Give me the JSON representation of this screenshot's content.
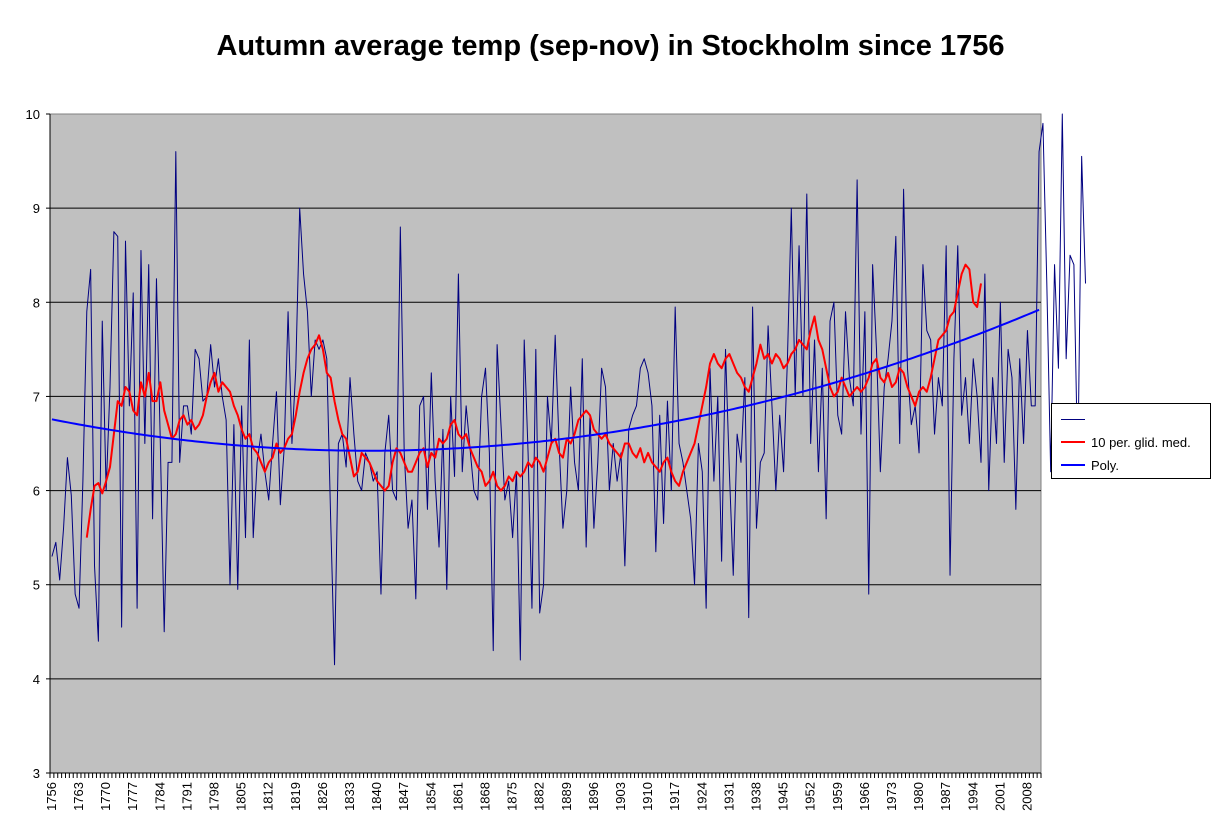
{
  "chart_data": {
    "type": "line",
    "title": "Autumn average temp (sep-nov) in Stockholm since 1756",
    "xlabel": "",
    "ylabel": "",
    "ylim": [
      3,
      10
    ],
    "yticks": [
      3,
      4,
      5,
      6,
      7,
      8,
      9,
      10
    ],
    "x_start": 1756,
    "x_end": 2011,
    "xtick_labels": [
      "1756",
      "1763",
      "1770",
      "1777",
      "1784",
      "1791",
      "1798",
      "1805",
      "1812",
      "1819",
      "1826",
      "1833",
      "1840",
      "1847",
      "1854",
      "1861",
      "1868",
      "1875",
      "1882",
      "1889",
      "1896",
      "1903",
      "1910",
      "1917",
      "1924",
      "1931",
      "1938",
      "1945",
      "1952",
      "1959",
      "1966",
      "1973",
      "1980",
      "1987",
      "1994",
      "2001",
      "2008"
    ],
    "grid": "horizontal",
    "plot_background": "#c0c0c0",
    "legend_position": "right",
    "series": [
      {
        "name": "",
        "color": "#000080",
        "stroke_width": 1,
        "values": [
          5.3,
          5.45,
          5.05,
          5.6,
          6.35,
          5.95,
          4.9,
          4.75,
          6.1,
          7.9,
          8.35,
          5.2,
          4.4,
          7.8,
          6.0,
          7.1,
          8.75,
          8.7,
          4.55,
          8.65,
          6.9,
          8.1,
          4.75,
          8.55,
          6.5,
          8.4,
          5.7,
          8.25,
          6.5,
          4.5,
          6.3,
          6.3,
          9.6,
          6.3,
          6.9,
          6.9,
          6.6,
          7.5,
          7.4,
          6.95,
          7.0,
          7.55,
          7.1,
          7.4,
          7.0,
          6.75,
          5.0,
          6.7,
          4.95,
          6.9,
          5.5,
          7.6,
          5.5,
          6.3,
          6.6,
          6.2,
          5.9,
          6.5,
          7.05,
          5.85,
          6.45,
          7.9,
          6.5,
          7.3,
          9.0,
          8.3,
          7.9,
          7.0,
          7.6,
          7.5,
          7.6,
          7.4,
          5.7,
          4.15,
          6.5,
          6.6,
          6.25,
          7.2,
          6.6,
          6.1,
          6.0,
          6.4,
          6.3,
          6.1,
          6.2,
          4.9,
          6.4,
          6.8,
          6.0,
          5.9,
          8.8,
          6.4,
          5.6,
          5.9,
          4.85,
          6.9,
          7.0,
          5.8,
          7.25,
          6.1,
          5.4,
          6.65,
          4.95,
          7.0,
          6.15,
          8.3,
          6.2,
          6.9,
          6.45,
          6.0,
          5.9,
          7.0,
          7.3,
          6.4,
          4.3,
          7.55,
          6.7,
          5.9,
          6.1,
          5.5,
          6.2,
          4.2,
          7.6,
          6.4,
          4.75,
          7.5,
          4.7,
          5.0,
          7.0,
          6.5,
          7.65,
          6.5,
          5.6,
          6.0,
          7.1,
          6.3,
          6.0,
          7.4,
          5.4,
          6.8,
          5.6,
          6.3,
          7.3,
          7.1,
          6.0,
          6.5,
          6.1,
          6.4,
          5.2,
          6.65,
          6.8,
          6.9,
          7.3,
          7.4,
          7.25,
          6.9,
          5.35,
          6.8,
          5.65,
          6.95,
          6.0,
          7.95,
          6.5,
          6.3,
          6.0,
          5.7,
          5.0,
          6.5,
          6.2,
          4.75,
          7.3,
          6.1,
          7.0,
          5.25,
          7.5,
          6.2,
          5.1,
          6.6,
          6.3,
          7.2,
          4.65,
          7.95,
          5.6,
          6.3,
          6.4,
          7.75,
          6.9,
          6.0,
          6.8,
          6.2,
          7.4,
          9.0,
          7.0,
          8.6,
          7.0,
          9.15,
          6.5,
          7.6,
          6.2,
          7.3,
          5.7,
          7.8,
          8.0,
          6.8,
          6.6,
          7.9,
          7.2,
          6.9,
          9.3,
          6.6,
          7.9,
          4.9,
          8.4,
          7.5,
          6.2,
          7.1,
          7.4,
          7.8,
          8.7,
          6.5,
          9.2,
          7.3,
          6.7,
          6.9,
          6.4,
          8.4,
          7.7,
          7.6,
          6.6,
          7.2,
          6.9,
          8.6,
          5.1,
          7.4,
          8.6,
          6.8,
          7.2,
          6.5,
          7.4,
          7.0,
          6.3,
          8.3,
          6.0,
          7.2,
          6.5,
          8.0,
          6.3,
          7.5,
          7.2,
          5.8,
          7.4,
          6.5,
          7.7,
          6.9,
          6.9,
          9.6,
          9.9,
          8.2,
          6.2,
          8.4,
          7.3,
          10.0,
          7.4,
          8.5,
          8.4,
          6.2,
          9.55,
          8.2
        ]
      },
      {
        "name": "10 per. glid. med.",
        "color": "#ff0000",
        "stroke_width": 2,
        "start_year": 1765,
        "values": [
          5.5,
          5.8,
          6.05,
          6.08,
          5.97,
          6.1,
          6.25,
          6.6,
          6.95,
          6.9,
          7.1,
          7.05,
          6.85,
          6.8,
          7.15,
          7.0,
          7.25,
          6.95,
          6.95,
          7.15,
          6.85,
          6.7,
          6.55,
          6.6,
          6.75,
          6.8,
          6.7,
          6.75,
          6.65,
          6.7,
          6.8,
          7.0,
          7.15,
          7.25,
          7.05,
          7.15,
          7.1,
          7.05,
          6.9,
          6.8,
          6.65,
          6.55,
          6.6,
          6.45,
          6.4,
          6.3,
          6.2,
          6.3,
          6.35,
          6.5,
          6.4,
          6.45,
          6.55,
          6.6,
          6.8,
          7.05,
          7.25,
          7.4,
          7.5,
          7.55,
          7.65,
          7.5,
          7.25,
          7.2,
          6.95,
          6.75,
          6.6,
          6.55,
          6.35,
          6.15,
          6.2,
          6.4,
          6.35,
          6.3,
          6.2,
          6.1,
          6.05,
          6.0,
          6.05,
          6.3,
          6.45,
          6.4,
          6.3,
          6.2,
          6.2,
          6.3,
          6.4,
          6.45,
          6.25,
          6.4,
          6.35,
          6.55,
          6.5,
          6.55,
          6.7,
          6.75,
          6.6,
          6.55,
          6.6,
          6.45,
          6.35,
          6.25,
          6.2,
          6.05,
          6.1,
          6.2,
          6.05,
          6.0,
          6.05,
          6.15,
          6.1,
          6.2,
          6.15,
          6.2,
          6.3,
          6.25,
          6.35,
          6.3,
          6.2,
          6.35,
          6.5,
          6.55,
          6.4,
          6.35,
          6.55,
          6.5,
          6.6,
          6.75,
          6.8,
          6.85,
          6.8,
          6.65,
          6.6,
          6.55,
          6.6,
          6.5,
          6.45,
          6.4,
          6.35,
          6.5,
          6.5,
          6.4,
          6.35,
          6.45,
          6.3,
          6.4,
          6.3,
          6.25,
          6.2,
          6.3,
          6.35,
          6.2,
          6.1,
          6.05,
          6.2,
          6.3,
          6.4,
          6.5,
          6.7,
          6.9,
          7.1,
          7.35,
          7.45,
          7.35,
          7.3,
          7.4,
          7.45,
          7.35,
          7.25,
          7.2,
          7.1,
          7.05,
          7.2,
          7.35,
          7.55,
          7.4,
          7.45,
          7.35,
          7.45,
          7.4,
          7.3,
          7.35,
          7.45,
          7.5,
          7.6,
          7.55,
          7.5,
          7.7,
          7.85,
          7.6,
          7.5,
          7.3,
          7.1,
          7.0,
          7.05,
          7.2,
          7.1,
          7.0,
          7.05,
          7.1,
          7.05,
          7.1,
          7.2,
          7.35,
          7.4,
          7.2,
          7.15,
          7.25,
          7.1,
          7.15,
          7.3,
          7.25,
          7.1,
          7.0,
          6.9,
          7.05,
          7.1,
          7.05,
          7.2,
          7.4,
          7.6,
          7.65,
          7.7,
          7.85,
          7.9,
          8.1,
          8.3,
          8.4,
          8.35,
          8.0,
          7.95,
          8.2
        ]
      },
      {
        "name": "Poly.",
        "color": "#0000ff",
        "stroke_width": 2,
        "type": "polynomial-trend",
        "x": [
          1756,
          1780,
          1800,
          1820,
          1840,
          1860,
          1880,
          1900,
          1920,
          1940,
          1960,
          1980,
          2000,
          2011
        ],
        "values": [
          6.72,
          6.6,
          6.52,
          6.46,
          6.44,
          6.45,
          6.5,
          6.6,
          6.74,
          6.93,
          7.17,
          7.44,
          7.75,
          7.92
        ]
      }
    ]
  }
}
